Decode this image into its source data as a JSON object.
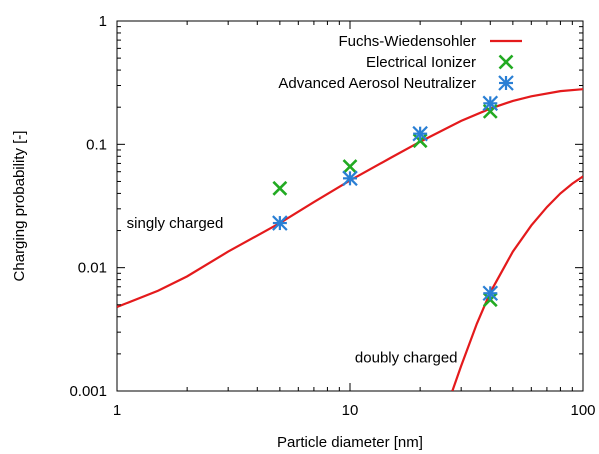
{
  "chart_data": {
    "type": "scatter",
    "title": "",
    "xlabel": "Particle diameter [nm]",
    "ylabel": "Charging probability [-]",
    "x_scale": "log",
    "y_scale": "log",
    "xlim": [
      1,
      100
    ],
    "ylim": [
      0.001,
      1
    ],
    "x_ticks": [
      1,
      10,
      100
    ],
    "x_tick_labels": [
      "1",
      "10",
      "100"
    ],
    "y_ticks": [
      0.001,
      0.01,
      0.1,
      1
    ],
    "y_tick_labels": [
      "0.001",
      "0.01",
      "0.1",
      "1"
    ],
    "grid": false,
    "legend_position": "top-right",
    "series": [
      {
        "name": "Fuchs-Wiedensohler",
        "kind": "line",
        "color": "#e41a1c",
        "segment": "singly",
        "x": [
          1,
          1.5,
          2,
          3,
          5,
          7,
          10,
          15,
          20,
          30,
          40,
          50,
          60,
          80,
          100
        ],
        "y": [
          0.0048,
          0.0065,
          0.0085,
          0.0135,
          0.023,
          0.034,
          0.051,
          0.078,
          0.105,
          0.155,
          0.195,
          0.225,
          0.245,
          0.27,
          0.28
        ]
      },
      {
        "name": "",
        "kind": "line",
        "color": "#e41a1c",
        "segment": "doubly",
        "x": [
          27.5,
          30,
          35,
          40,
          50,
          60,
          70,
          80,
          90,
          100
        ],
        "y": [
          0.001,
          0.0016,
          0.0035,
          0.0063,
          0.0135,
          0.022,
          0.031,
          0.04,
          0.048,
          0.055
        ]
      },
      {
        "name": "Electrical Ionizer",
        "kind": "points",
        "marker": "x",
        "color": "#22aa22",
        "x": [
          5,
          10,
          20,
          40,
          40
        ],
        "y": [
          0.044,
          0.066,
          0.107,
          0.185,
          0.0055
        ]
      },
      {
        "name": "Advanced Aerosol Neutralizer",
        "kind": "points",
        "marker": "star",
        "color": "#2a7fd4",
        "x": [
          5,
          10,
          20,
          40,
          40
        ],
        "y": [
          0.023,
          0.053,
          0.122,
          0.215,
          0.0062
        ]
      }
    ],
    "annotations": [
      {
        "text": "singly charged",
        "x": 1.1,
        "y": 0.021
      },
      {
        "text": "doubly charged",
        "x": 10.5,
        "y": 0.0017
      }
    ]
  }
}
